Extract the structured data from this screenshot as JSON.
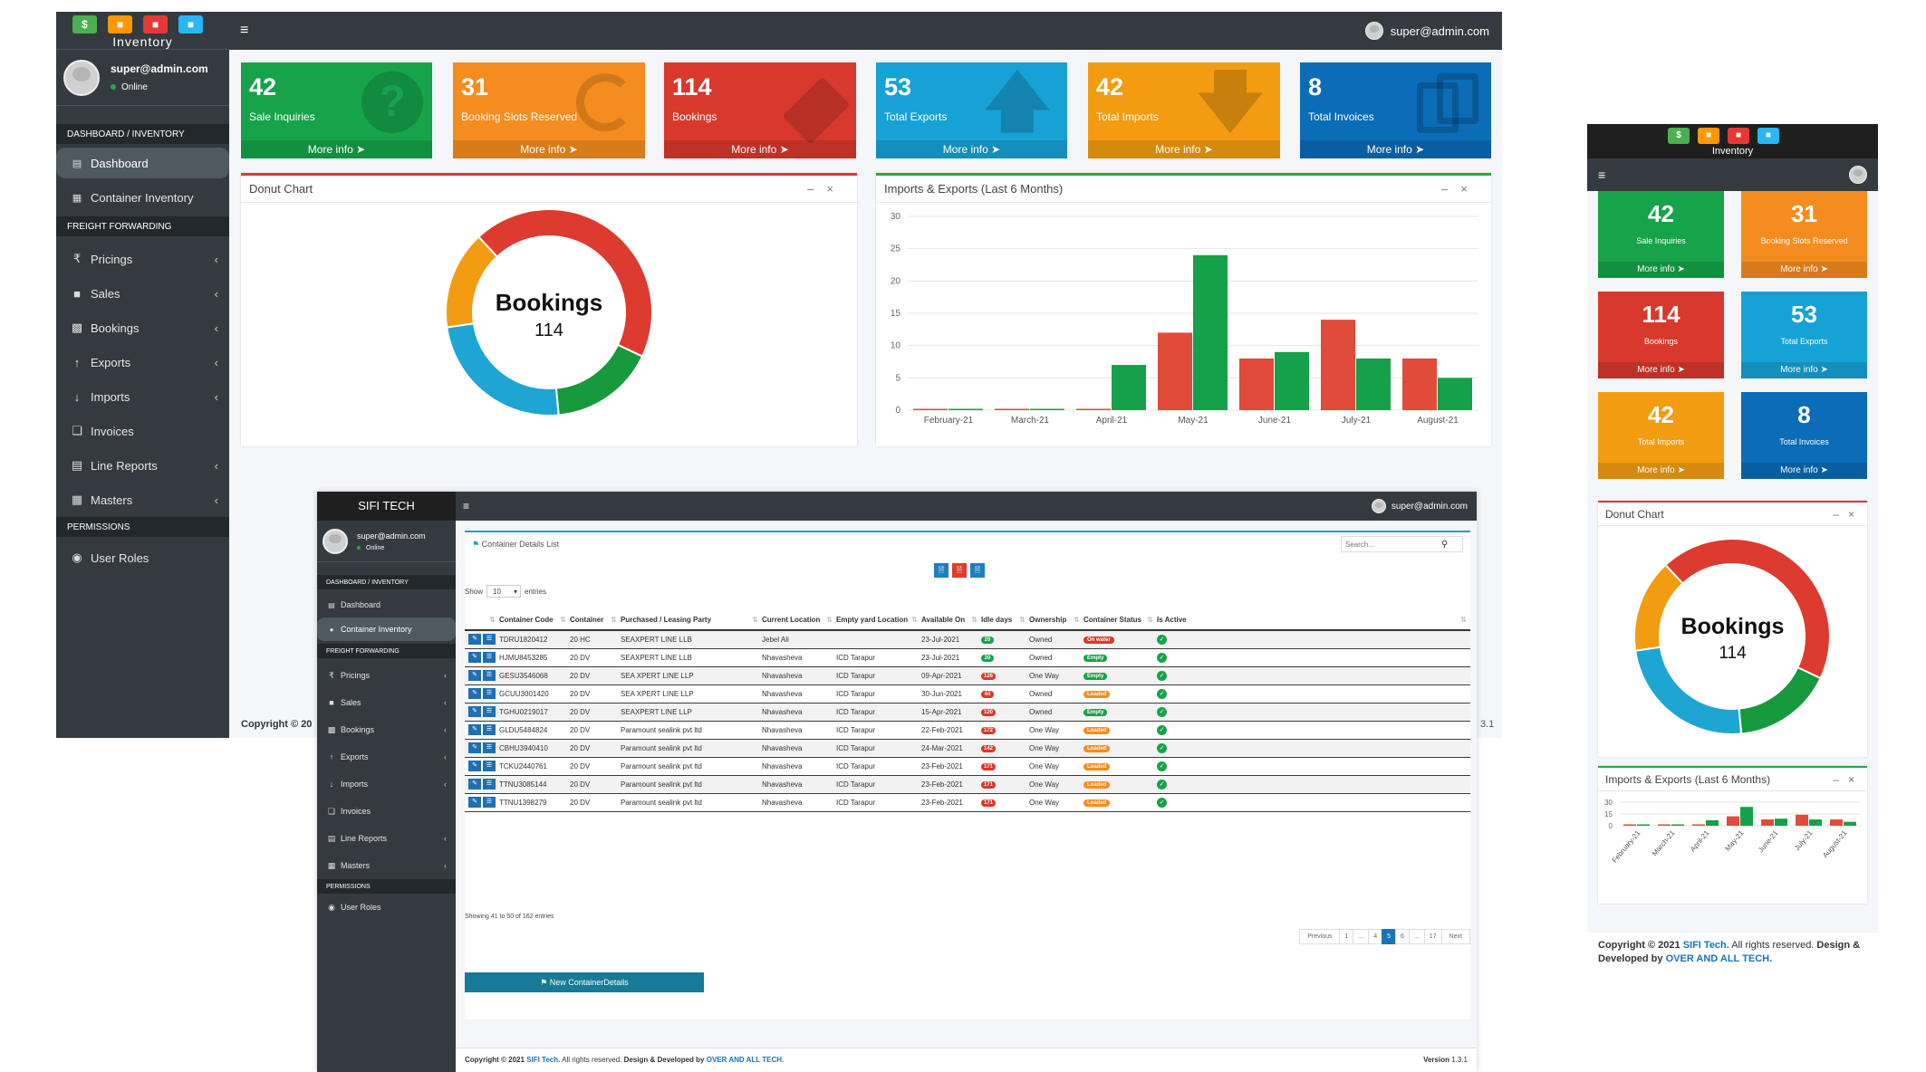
{
  "brand": {
    "logo_text": "Inventory",
    "alt_title": "SIFI TECH",
    "logo_colors": [
      "#4caf50",
      "#ff9800",
      "#e53935",
      "#29b6f6"
    ]
  },
  "user": {
    "email": "super@admin.com",
    "status": "Online"
  },
  "colors": {
    "green": "#16a34a",
    "orange": "#f58c1f",
    "red": "#d9382c",
    "cyan": "#17a2d6",
    "amber": "#f39c12",
    "blue": "#0b6cb8",
    "sidebar": "#343a40"
  },
  "sidebar": {
    "sections": {
      "dashboard": "DASHBOARD / INVENTORY",
      "freight": "FREIGHT FORWARDING",
      "permissions": "PERMISSIONS"
    },
    "items": {
      "dashboard": "Dashboard",
      "container_inventory": "Container Inventory",
      "pricings": "Pricings",
      "sales": "Sales",
      "bookings": "Bookings",
      "exports": "Exports",
      "imports": "Imports",
      "invoices": "Invoices",
      "line_reports": "Line Reports",
      "masters": "Masters",
      "user_roles": "User Roles"
    }
  },
  "stats": [
    {
      "value": "42",
      "label": "Sale Inquiries",
      "more": "More info",
      "icon": "question-icon"
    },
    {
      "value": "31",
      "label": "Booking Slots Reserved",
      "more": "More info",
      "icon": "circle-notch-icon"
    },
    {
      "value": "114",
      "label": "Bookings",
      "more": "More info",
      "icon": "ticket-icon"
    },
    {
      "value": "53",
      "label": "Total Exports",
      "more": "More info",
      "icon": "arrow-up-icon"
    },
    {
      "value": "42",
      "label": "Total Imports",
      "more": "More info",
      "icon": "arrow-down-icon"
    },
    {
      "value": "8",
      "label": "Total Invoices",
      "more": "More info",
      "icon": "copy-icon"
    }
  ],
  "donut_card": {
    "title": "Donut Chart",
    "center_label": "Bookings",
    "center_value": "114"
  },
  "bar_card": {
    "title": "Imports & Exports (Last 6 Months)"
  },
  "chart_data": [
    {
      "type": "pie",
      "title": "Donut Chart",
      "center_text": [
        "Bookings",
        "114"
      ],
      "values": [
        40,
        15,
        22,
        14
      ],
      "colors": [
        "#dd3b2f",
        "#17993d",
        "#1ea5d4",
        "#f39c12"
      ]
    },
    {
      "type": "bar",
      "title": "Imports & Exports (Last 6 Months)",
      "categories": [
        "February-21",
        "March-21",
        "April-21",
        "May-21",
        "June-21",
        "July-21",
        "August-21"
      ],
      "series": [
        {
          "values": [
            0,
            0,
            0,
            12,
            8,
            14,
            8
          ],
          "color": "#e04b3a"
        },
        {
          "values": [
            0,
            0,
            7,
            24,
            9,
            8,
            5
          ],
          "color": "#15a04a"
        }
      ],
      "yticks": [
        0,
        5,
        10,
        15,
        20,
        25,
        30
      ],
      "ylim": [
        0,
        30
      ]
    }
  ],
  "mobile_chart": {
    "yticks": [
      "30",
      "15",
      "0"
    ]
  },
  "table_page": {
    "title": "Container Details List",
    "search_placeholder": "Search...",
    "show_label": "Show",
    "entries_value": "10",
    "entries_label": "entries",
    "columns": [
      "",
      "Container Code",
      "Container",
      "Purchased / Leasing Party",
      "Current Location",
      "Empty yard Location",
      "Available On",
      "Idle days",
      "Ownership",
      "Container Status",
      "Is Active"
    ],
    "rows": [
      [
        "TDRU1820412",
        "20 HC",
        "SEAXPERT LINE LLB",
        "Jebel Ali",
        "",
        "23-Jul-2021",
        "20",
        "Owned",
        "On water"
      ],
      [
        "HJMU8453285",
        "20 DV",
        "SEAXPERT LINE LLB",
        "Nhavasheva",
        "ICD Tarapur",
        "23-Jul-2021",
        "20",
        "Owned",
        "Empty"
      ],
      [
        "GESU3546068",
        "20 DV",
        "SEA XPERT LINE LLP",
        "Nhavasheva",
        "ICD Tarapur",
        "09-Apr-2021",
        "126",
        "One Way",
        "Empty"
      ],
      [
        "GCUU3001420",
        "20 DV",
        "SEA XPERT LINE LLP",
        "Nhavasheva",
        "ICD Tarapur",
        "30-Jun-2021",
        "44",
        "Owned",
        "Loaded"
      ],
      [
        "TGHU0219017",
        "20 DV",
        "SEAXPERT LINE LLP",
        "Nhavasheva",
        "ICD Tarapur",
        "15-Apr-2021",
        "120",
        "Owned",
        "Empty"
      ],
      [
        "GLDU5484824",
        "20 DV",
        "Paramount sealink pvt ltd",
        "Nhavasheva",
        "ICD Tarapur",
        "22-Feb-2021",
        "172",
        "One Way",
        "Loaded"
      ],
      [
        "CBHU3940410",
        "20 DV",
        "Paramount sealink pvt ltd",
        "Nhavasheva",
        "ICD Tarapur",
        "24-Mar-2021",
        "142",
        "One Way",
        "Loaded"
      ],
      [
        "TCKU2440761",
        "20 DV",
        "Paramount sealink pvt ltd",
        "Nhavasheva",
        "ICD Tarapur",
        "23-Feb-2021",
        "171",
        "One Way",
        "Loaded"
      ],
      [
        "TTNU3085144",
        "20 DV",
        "Paramount sealink pvt ltd",
        "Nhavasheva",
        "ICD Tarapur",
        "23-Feb-2021",
        "171",
        "One Way",
        "Loaded"
      ],
      [
        "TTNU1398279",
        "20 DV",
        "Paramount sealink pvt ltd",
        "Nhavasheva",
        "ICD Tarapur",
        "23-Feb-2021",
        "171",
        "One Way",
        "Loaded"
      ]
    ],
    "showing": "Showing 41 to 50 of 162 entries",
    "pagination": [
      "Previous",
      "1",
      "...",
      "4",
      "5",
      "6",
      "...",
      "17",
      "Next"
    ],
    "new_button": "New ContainerDetails"
  },
  "footer": {
    "copyright_prefix": "Copyright © 2021 ",
    "company": "SIFI Tech.",
    "rights": " All rights reserved. ",
    "design": "Design & Developed by ",
    "developer": "OVER AND ALL TECH.",
    "version_label": "Version",
    "version": "1.3.1",
    "left_fragment": "Copyright © 20",
    "right_fragment": "3.1",
    "mobile_design": "Design & Developed by"
  }
}
